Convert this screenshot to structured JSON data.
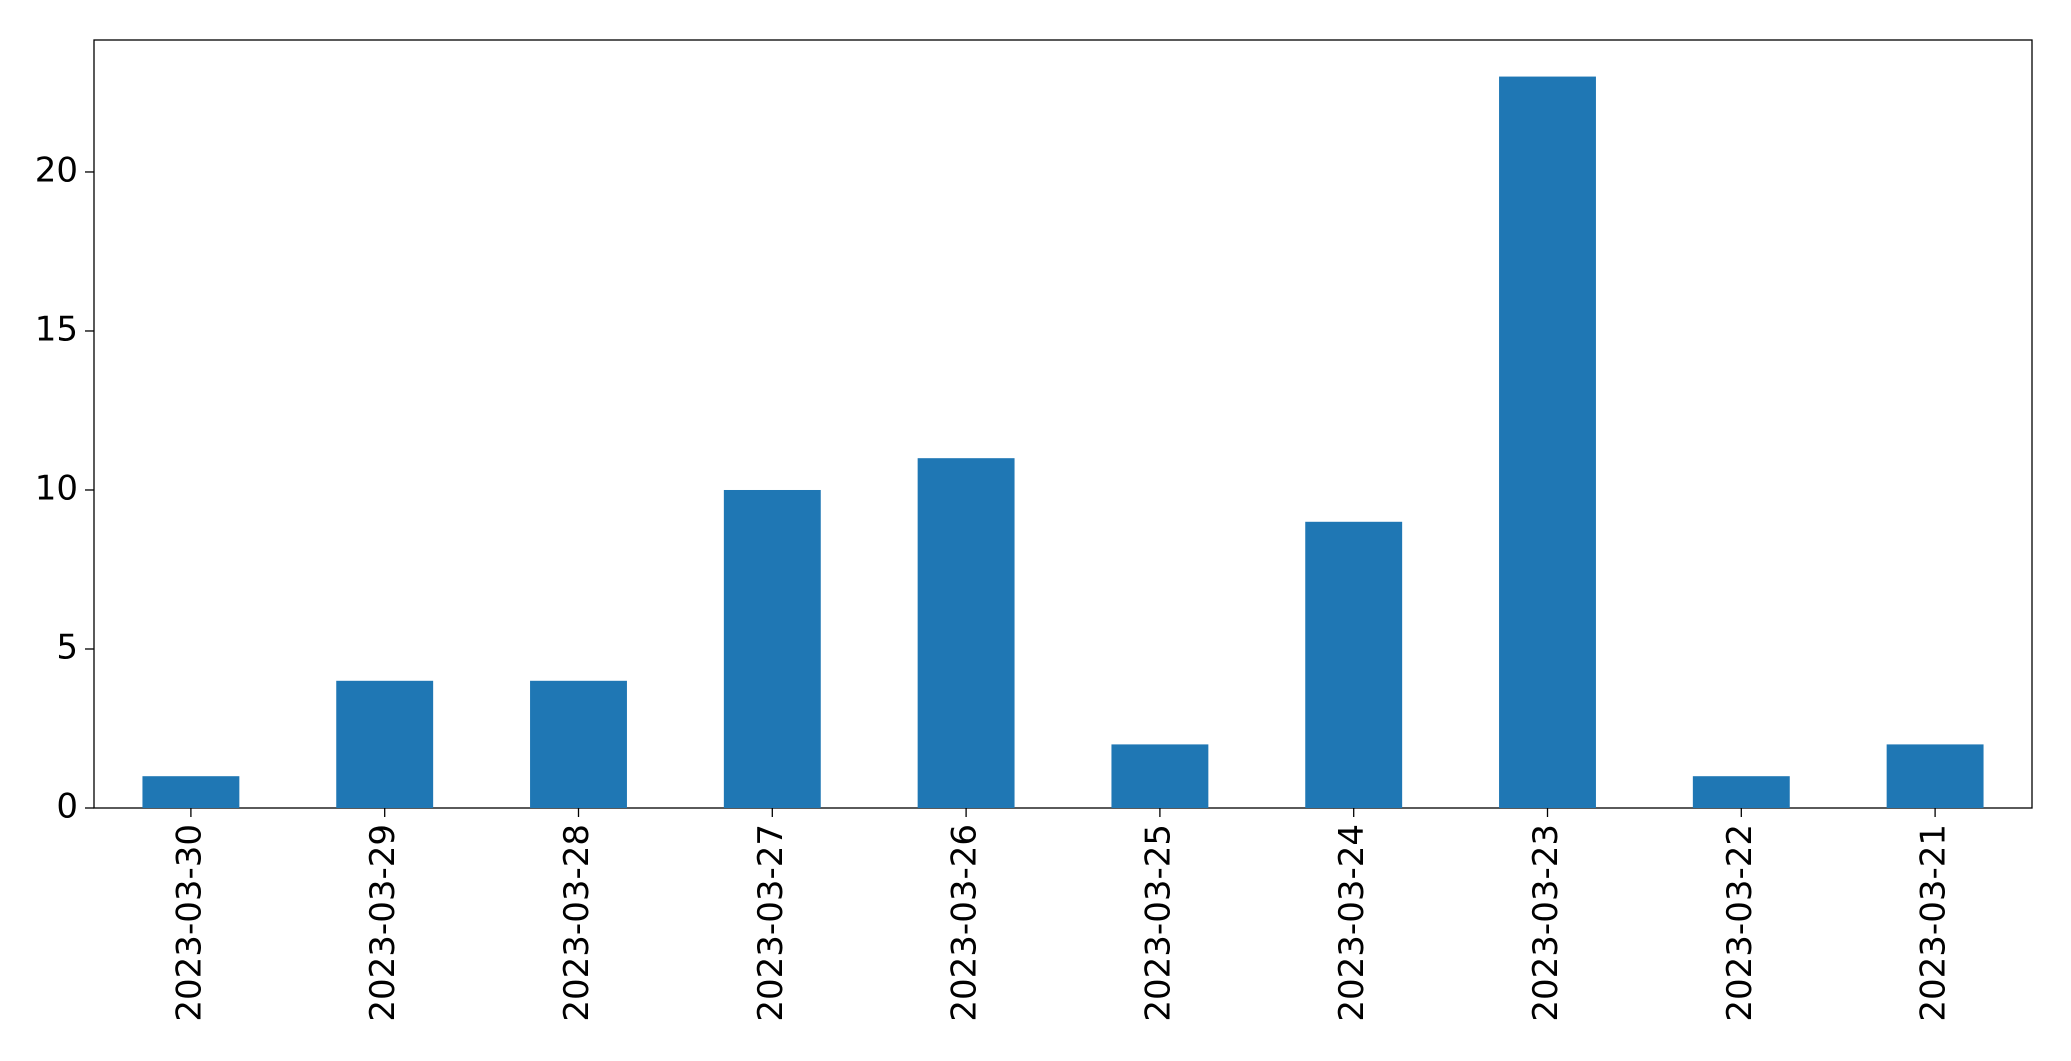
{
  "chart_data": {
    "type": "bar",
    "categories": [
      "2023-03-30",
      "2023-03-29",
      "2023-03-28",
      "2023-03-27",
      "2023-03-26",
      "2023-03-25",
      "2023-03-24",
      "2023-03-23",
      "2023-03-22",
      "2023-03-21"
    ],
    "values": [
      1,
      4,
      4,
      10,
      11,
      2,
      9,
      23,
      1,
      2
    ],
    "color": "#1f77b4",
    "ylim": [
      0,
      24.15
    ],
    "yticks": [
      0,
      5,
      10,
      15,
      20
    ],
    "grid": false
  }
}
